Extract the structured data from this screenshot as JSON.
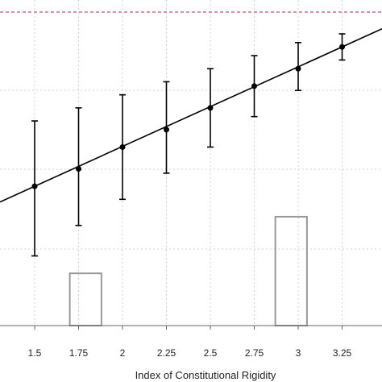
{
  "chart_data": {
    "type": "line",
    "xlabel": "Index of Constitutional Rigidity",
    "ylabel": "",
    "title": "",
    "xlim": [
      1.5,
      3.5
    ],
    "x_ticks": [
      "1.5",
      "1.75",
      "2",
      "2.25",
      "2.5",
      "2.75",
      "3",
      "3.25"
    ],
    "grid": true,
    "series": [
      {
        "style": "line with point estimates and confidence interval whiskers",
        "color": "#000000",
        "points": [
          {
            "x": 1.5,
            "y": 0.32,
            "lo": 0.16,
            "hi": 0.47
          },
          {
            "x": 1.75,
            "y": 0.36,
            "lo": 0.23,
            "hi": 0.5
          },
          {
            "x": 2.0,
            "y": 0.41,
            "lo": 0.29,
            "hi": 0.53
          },
          {
            "x": 2.25,
            "y": 0.45,
            "lo": 0.35,
            "hi": 0.56
          },
          {
            "x": 2.5,
            "y": 0.5,
            "lo": 0.41,
            "hi": 0.59
          },
          {
            "x": 2.75,
            "y": 0.55,
            "lo": 0.48,
            "hi": 0.62
          },
          {
            "x": 3.0,
            "y": 0.59,
            "lo": 0.54,
            "hi": 0.65
          },
          {
            "x": 3.25,
            "y": 0.64,
            "lo": 0.61,
            "hi": 0.67
          }
        ]
      }
    ],
    "reference_line": {
      "y": 0.72,
      "style": "dashed",
      "color": "#d64b7a"
    },
    "histogram": {
      "color": "#999999",
      "bars": [
        {
          "x0": 1.7,
          "x1": 1.88,
          "height": 0.12
        },
        {
          "x0": 2.87,
          "x1": 3.05,
          "height": 0.25
        }
      ]
    }
  }
}
